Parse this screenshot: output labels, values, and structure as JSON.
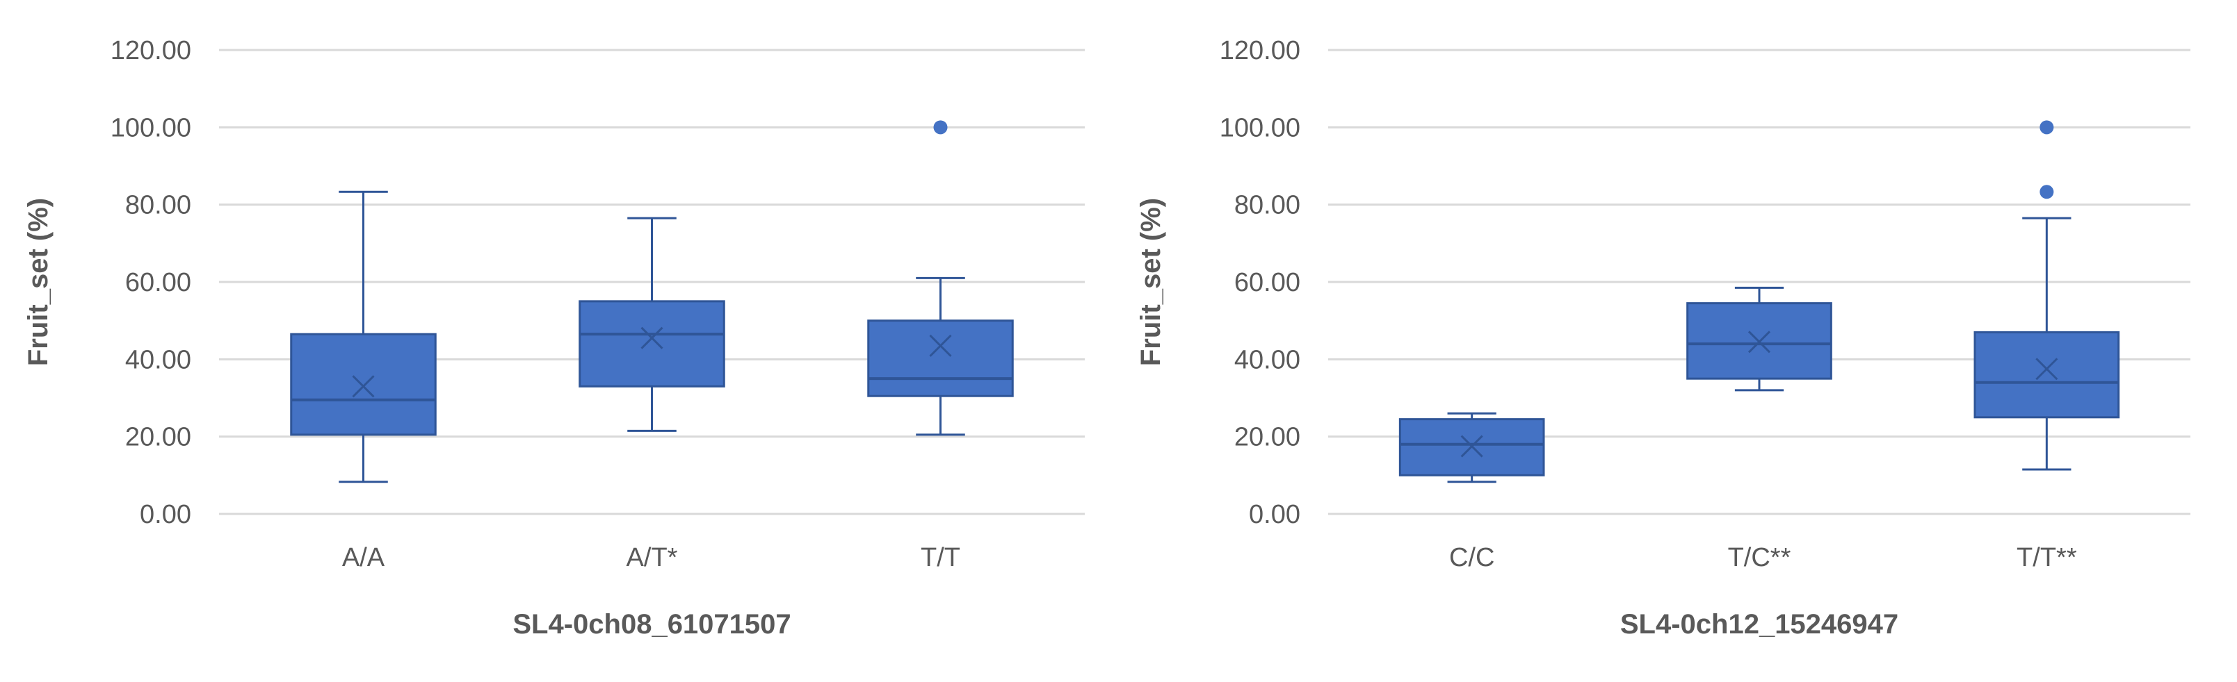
{
  "chart_data": [
    {
      "type": "box",
      "xlabel": "SL4-0ch08_61071507",
      "ylabel": "Fruit_set (%)",
      "ylim": [
        0,
        120
      ],
      "yticks": [
        "0.00",
        "20.00",
        "40.00",
        "60.00",
        "80.00",
        "100.00",
        "120.00"
      ],
      "grid": true,
      "categories": [
        "A/A",
        "A/T*",
        "T/T"
      ],
      "boxes": [
        {
          "min": 8.3,
          "q1": 20.5,
          "median": 29.5,
          "q3": 46.5,
          "max": 83.3,
          "mean": 33.0,
          "outliers": []
        },
        {
          "min": 21.5,
          "q1": 33.0,
          "median": 46.5,
          "q3": 55.0,
          "max": 76.5,
          "mean": 45.5,
          "outliers": []
        },
        {
          "min": 20.5,
          "q1": 30.5,
          "median": 35.0,
          "q3": 50.0,
          "max": 61.0,
          "mean": 43.5,
          "outliers": [
            100.0
          ]
        }
      ]
    },
    {
      "type": "box",
      "xlabel": "SL4-0ch12_15246947",
      "ylabel": "Fruit_set (%)",
      "ylim": [
        0,
        120
      ],
      "yticks": [
        "0.00",
        "20.00",
        "40.00",
        "60.00",
        "80.00",
        "100.00",
        "120.00"
      ],
      "grid": true,
      "categories": [
        "C/C",
        "T/C**",
        "T/T**"
      ],
      "boxes": [
        {
          "min": 8.3,
          "q1": 10.0,
          "median": 18.0,
          "q3": 24.5,
          "max": 26.0,
          "mean": 17.5,
          "outliers": []
        },
        {
          "min": 32.0,
          "q1": 35.0,
          "median": 44.0,
          "q3": 54.5,
          "max": 58.5,
          "mean": 44.5,
          "outliers": []
        },
        {
          "min": 11.5,
          "q1": 25.0,
          "median": 34.0,
          "q3": 47.0,
          "max": 76.5,
          "mean": 37.5,
          "outliers": [
            83.3,
            100.0
          ]
        }
      ]
    }
  ],
  "colors": {
    "box_fill": "#4472C4",
    "box_stroke": "#2F5597",
    "whisker": "#2F5597",
    "grid": "#D9D9D9",
    "text": "#595959"
  }
}
